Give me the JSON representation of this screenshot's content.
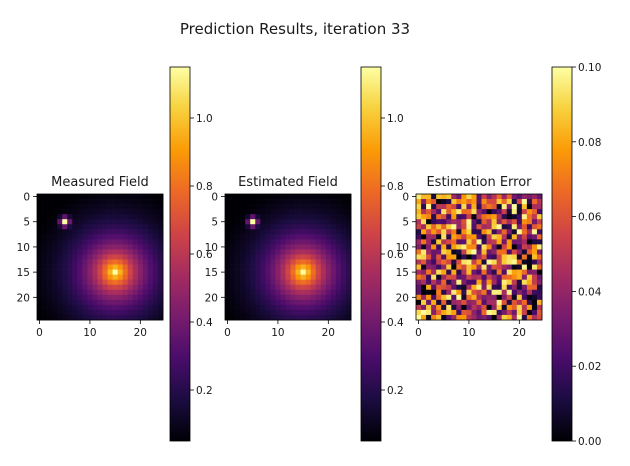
{
  "figure_title": "Prediction Results, iteration 33",
  "colormap": [
    "#000004",
    "#1b0c41",
    "#4a0c6b",
    "#781c6d",
    "#a52c60",
    "#cf4446",
    "#ed6925",
    "#fb9b06",
    "#f7d13d",
    "#fcffa4"
  ],
  "chart_data": [
    {
      "type": "heatmap",
      "title": "Measured Field",
      "grid_size": 25,
      "model": "sum of two point sources: strong peak at (15, 15), small sharp peak at (5, 5)",
      "peaks": [
        {
          "x": 15,
          "y": 15,
          "value": 1.15
        },
        {
          "x": 5,
          "y": 5,
          "value": 1.15
        }
      ],
      "min_value": 0.05,
      "x_ticks": [
        "0",
        "10",
        "20"
      ],
      "y_ticks": [
        "0",
        "5",
        "10",
        "15",
        "20"
      ],
      "colorbar": {
        "range": [
          0.05,
          1.15
        ],
        "ticks": [
          "0.2",
          "0.4",
          "0.6",
          "0.8",
          "1.0"
        ]
      }
    },
    {
      "type": "heatmap",
      "title": "Estimated Field",
      "grid_size": 25,
      "model": "nearly identical to measured field",
      "peaks": [
        {
          "x": 15,
          "y": 15,
          "value": 1.15
        },
        {
          "x": 5,
          "y": 5,
          "value": 1.15
        }
      ],
      "min_value": 0.05,
      "x_ticks": [
        "0",
        "10",
        "20"
      ],
      "y_ticks": [
        "0",
        "5",
        "10",
        "15",
        "20"
      ],
      "colorbar": {
        "range": [
          0.05,
          1.15
        ],
        "ticks": [
          "0.2",
          "0.4",
          "0.6",
          "0.8",
          "1.0"
        ]
      }
    },
    {
      "type": "heatmap",
      "title": "Estimation Error",
      "grid_size": 25,
      "model": "random noise, values between 0.00 and 0.10",
      "value_range": [
        0.0,
        0.1
      ],
      "x_ticks": [
        "0",
        "10",
        "20"
      ],
      "y_ticks": [
        "0",
        "5",
        "10",
        "15",
        "20"
      ],
      "colorbar": {
        "range": [
          0.0,
          0.1
        ],
        "ticks": [
          "0.00",
          "0.02",
          "0.04",
          "0.06",
          "0.08",
          "0.10"
        ]
      }
    }
  ]
}
